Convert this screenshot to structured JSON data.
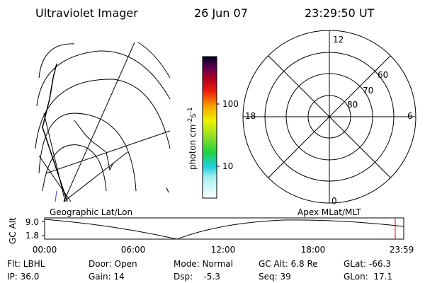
{
  "header": {
    "title": "Ultraviolet Imager",
    "date": "26 Jun 07",
    "time": "23:29:50 UT"
  },
  "colorbar": {
    "unit_a": "photon cm",
    "exp_a": "-2",
    "unit_b": "s",
    "exp_b": "-1",
    "ticks": [
      "100",
      "10"
    ]
  },
  "polar": {
    "top": "12",
    "bottom": "0",
    "left": "18",
    "right": "6",
    "lat_labels": [
      "60",
      "70",
      "80"
    ]
  },
  "altitude_plot": {
    "ylabel": "GC Alt",
    "yticks": [
      "9.0",
      "1.8"
    ],
    "left_title": "Geographic Lat/Lon",
    "right_title": "Apex MLat/MLT",
    "xticks": [
      "00:00",
      "06:00",
      "12:00",
      "18:00",
      "23:59"
    ]
  },
  "status": {
    "rows": [
      [
        "Flt: LBHL",
        "Door: Open",
        "Mode: Normal",
        "GC Alt: 6.8 Re",
        "GLat: -66.3"
      ],
      [
        "IP: 36.0",
        "Gain: 14",
        "Dsp:    -5.3",
        "Seq: 39",
        "GLon:  17.1"
      ]
    ]
  }
}
